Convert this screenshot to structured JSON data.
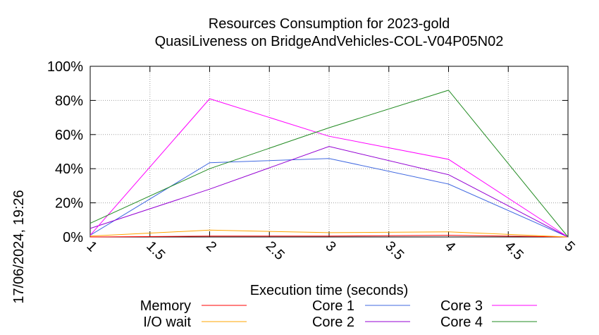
{
  "chart_data": {
    "type": "line",
    "title": "Resources Consumption for 2023-gold",
    "subtitle": "QuasiLiveness on BridgeAndVehicles-COL-V04P05N02",
    "xlabel": "Execution time (seconds)",
    "ylabel": "",
    "timestamp": "17/06/2024, 19:26",
    "xlim": [
      1,
      5
    ],
    "ylim": [
      0,
      100
    ],
    "x_ticks": [
      1,
      1.5,
      2,
      2.5,
      3,
      3.5,
      4,
      4.5,
      5
    ],
    "x_tick_labels": [
      "1",
      "1.5",
      "2",
      "2.5",
      "3",
      "3.5",
      "4",
      "4.5",
      "5"
    ],
    "y_ticks": [
      0,
      20,
      40,
      60,
      80,
      100
    ],
    "y_tick_labels": [
      "0%",
      "20%",
      "40%",
      "60%",
      "80%",
      "100%"
    ],
    "grid": true,
    "legend_position": "bottom",
    "series": [
      {
        "name": "Memory",
        "color": "#ff0000",
        "x": [
          1,
          2,
          3,
          4,
          5
        ],
        "values": [
          0,
          0.5,
          0.5,
          1,
          0
        ]
      },
      {
        "name": "I/O wait",
        "color": "#ffa500",
        "x": [
          1,
          2,
          3,
          4,
          5
        ],
        "values": [
          0.5,
          4,
          2.5,
          3,
          0
        ]
      },
      {
        "name": "Core 1",
        "color": "#4169e1",
        "x": [
          1,
          2,
          3,
          4,
          5
        ],
        "values": [
          1,
          43.5,
          46,
          31,
          0
        ]
      },
      {
        "name": "Core 2",
        "color": "#9400d3",
        "x": [
          1,
          2,
          3,
          4,
          5
        ],
        "values": [
          5,
          28,
          53,
          36.5,
          0
        ]
      },
      {
        "name": "Core 3",
        "color": "#ff00ff",
        "x": [
          1,
          2,
          3,
          4,
          5
        ],
        "values": [
          1,
          81,
          59,
          45.5,
          0
        ]
      },
      {
        "name": "Core 4",
        "color": "#228b22",
        "x": [
          1,
          2,
          3,
          4,
          5
        ],
        "values": [
          8,
          40,
          64,
          86,
          0
        ]
      }
    ]
  }
}
